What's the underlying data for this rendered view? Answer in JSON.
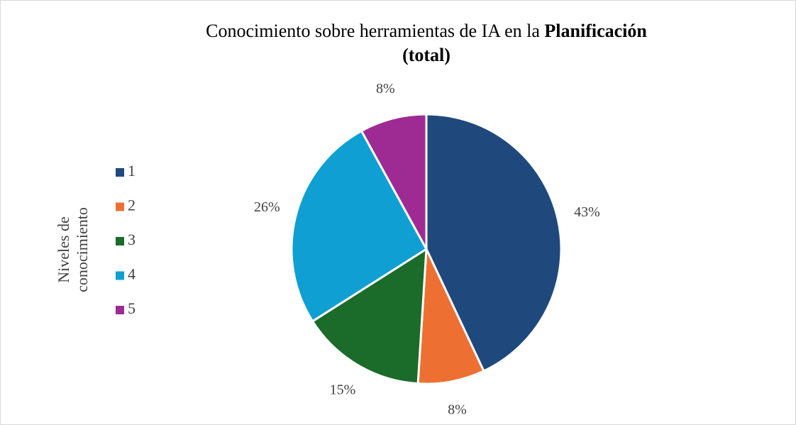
{
  "chart_data": {
    "type": "pie",
    "title": [
      "Conocimiento sobre herramientas de IA en la",
      "Planificación",
      "(total)"
    ],
    "legend_title": [
      "Niveles de",
      "conocimiento"
    ],
    "categories": [
      "1",
      "2",
      "3",
      "4",
      "5"
    ],
    "values": [
      43,
      8,
      15,
      26,
      8
    ],
    "value_labels": [
      "43%",
      "8%",
      "15%",
      "26%",
      "8%"
    ],
    "colors": [
      "#1f497d",
      "#ed7032",
      "#1b6b2a",
      "#0f9fd3",
      "#9e2b94"
    ],
    "legend": "left"
  }
}
